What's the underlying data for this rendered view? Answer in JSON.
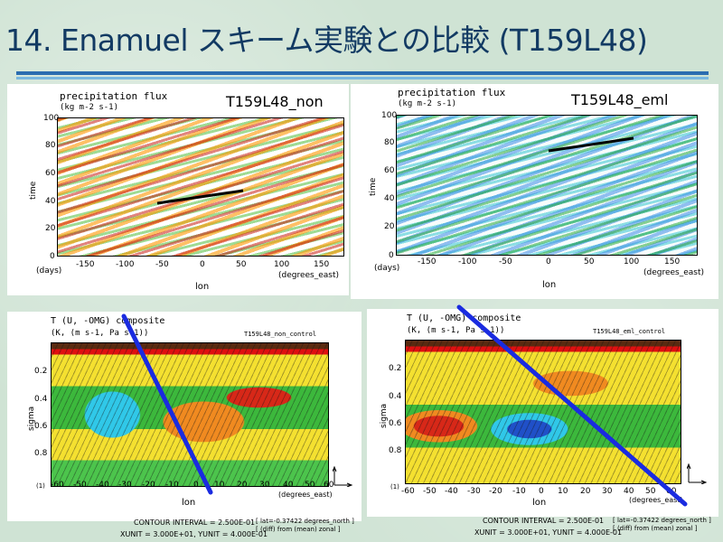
{
  "slide": {
    "title": "14. Enamuel スキーム実験との比較 (T159L48)"
  },
  "hovmoller": {
    "title_line1": "precipitation flux",
    "title_line2": "(kg m-2 s-1)",
    "ylabel": "time",
    "yunit": "(days)",
    "xlabel": "lon",
    "xunit": "(degrees_east)",
    "yticks": [
      "100",
      "80",
      "60",
      "40",
      "20",
      "0"
    ],
    "xticks": [
      "-150",
      "-100",
      "-50",
      "0",
      "50",
      "100",
      "150"
    ],
    "left_label": "T159L48_non",
    "right_label": "T159L48_eml"
  },
  "cross": {
    "title_line1": "T (U, -OMG) composite",
    "title_line2": "(K, (m s-1, Pa s-1))",
    "left_subtitle": "T159L48_non_control",
    "right_subtitle": "T159L48_eml_control",
    "ylabel": "sigma",
    "yticks": [
      "0.2",
      "0.4",
      "0.6",
      "0.8",
      "(1)"
    ],
    "xticks": [
      "-60",
      "-50",
      "-40",
      "-30",
      "-20",
      "-10",
      "0",
      "10",
      "20",
      "30",
      "40",
      "50",
      "60"
    ],
    "xlabel": "lon",
    "xunit": "(degrees_east)",
    "contour_interval": "CONTOUR INTERVAL = 2.500E-01",
    "units": "XUNIT = 3.000E+01, YUNIT = 4.000E-01",
    "note1": "[ lat=-0.37422 degrees_north ]",
    "note2": "[ (diff) from (mean) zonal ]"
  },
  "colors": {
    "title": "#123a63",
    "rule_dark": "#2b6db0",
    "rule_light": "#7ab8e0",
    "phase_line": "#1a2be0"
  }
}
